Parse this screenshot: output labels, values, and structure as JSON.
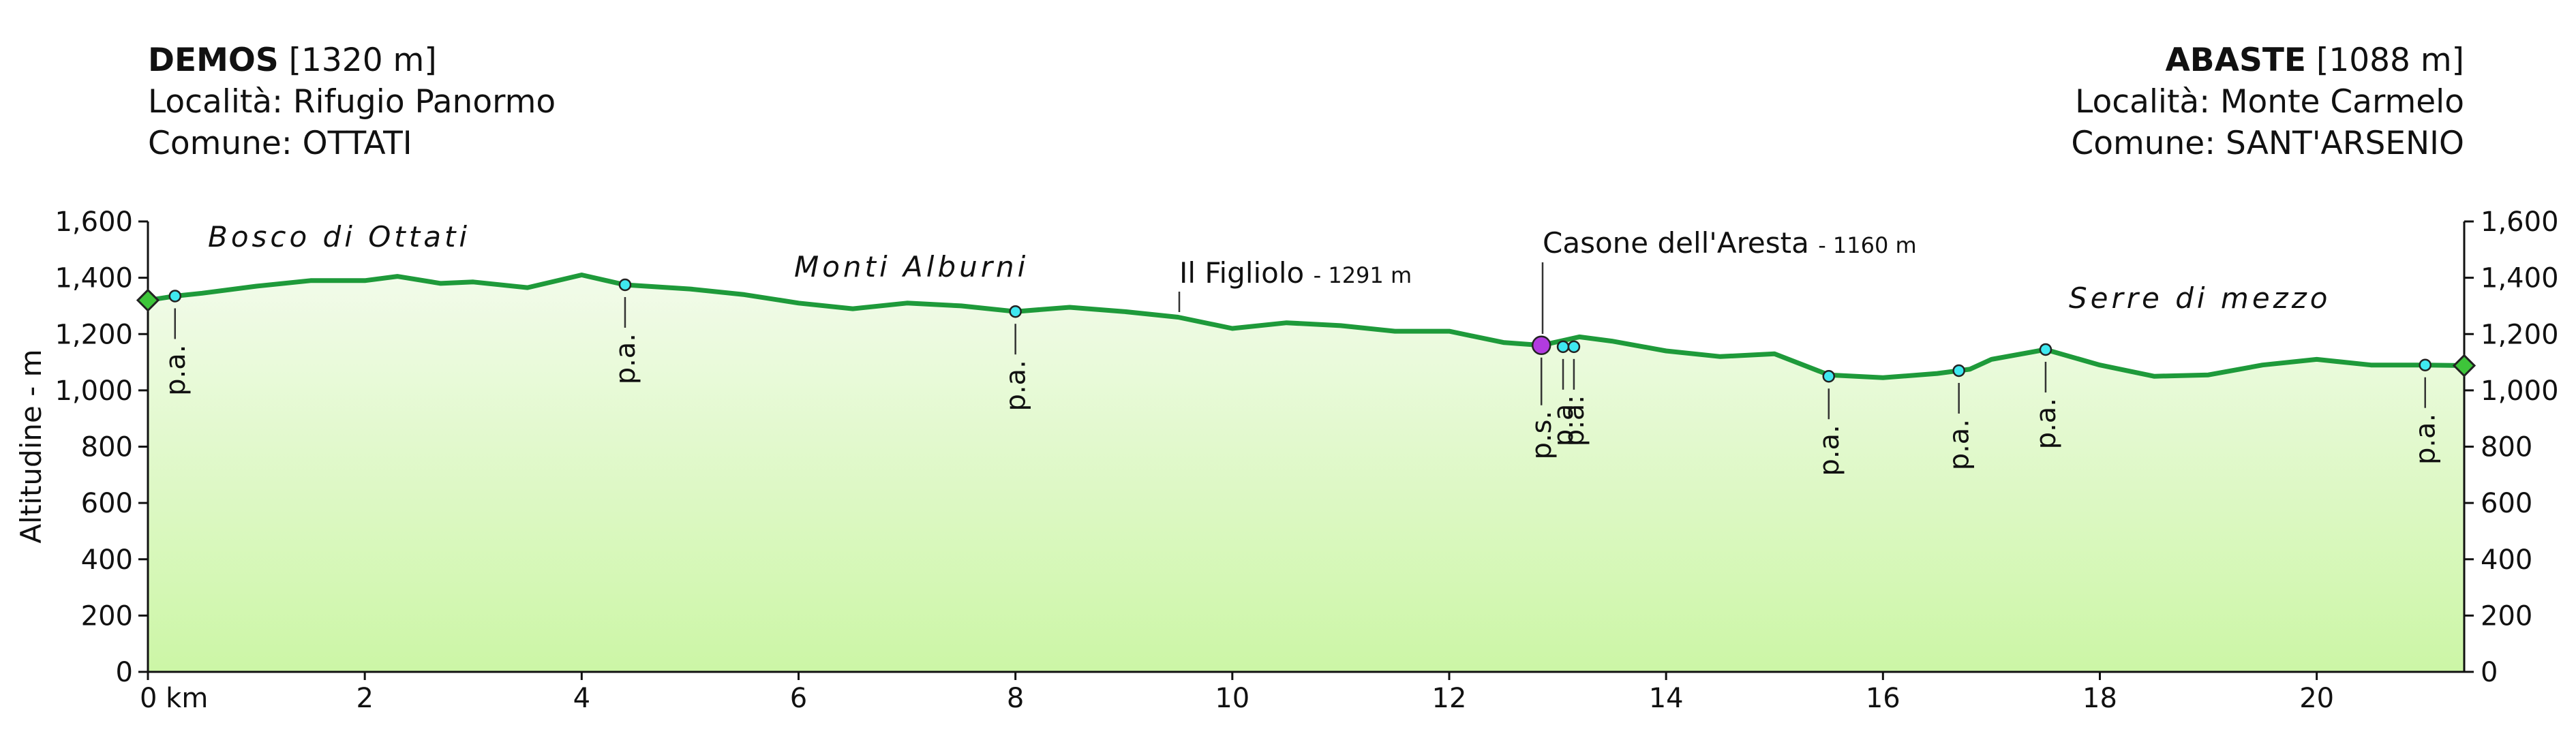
{
  "chart_data": {
    "type": "area",
    "header_left": {
      "name": "DEMOS",
      "altitude": "[1320 m]",
      "locality": "Località: Rifugio Panormo",
      "comune": "Comune: OTTATI"
    },
    "header_right": {
      "name": "ABASTE",
      "altitude": "[1088 m]",
      "locality": "Località: Monte Carmelo",
      "comune": "Comune: SANT'ARSENIO"
    },
    "y_label": "Altitudine - m",
    "x": [
      0,
      0.25,
      0.5,
      1.0,
      1.5,
      2.0,
      2.3,
      2.7,
      3.0,
      3.5,
      4.0,
      4.4,
      5.0,
      5.5,
      6.0,
      6.5,
      7.0,
      7.5,
      8.0,
      8.5,
      9.0,
      9.5,
      10.0,
      10.5,
      11.0,
      11.5,
      12.0,
      12.5,
      12.85,
      13.2,
      13.5,
      14.0,
      14.5,
      15.0,
      15.5,
      16.0,
      16.5,
      16.8,
      17.0,
      17.5,
      18.0,
      18.5,
      19.0,
      19.5,
      20.0,
      20.5,
      21.0,
      21.36
    ],
    "values": [
      1320,
      1335,
      1345,
      1370,
      1390,
      1390,
      1405,
      1380,
      1385,
      1365,
      1410,
      1375,
      1360,
      1340,
      1310,
      1290,
      1310,
      1300,
      1280,
      1295,
      1280,
      1260,
      1220,
      1240,
      1230,
      1210,
      1210,
      1170,
      1160,
      1190,
      1175,
      1140,
      1120,
      1130,
      1055,
      1045,
      1060,
      1075,
      1110,
      1145,
      1090,
      1050,
      1055,
      1090,
      1110,
      1090,
      1090,
      1088
    ],
    "color": "#1e9a3a",
    "fill_top": "#f2fbea",
    "fill_bottom": "#ccf6a6",
    "endpoint_color": "#3ec53a",
    "markers": {
      "x": [
        0.25,
        4.4,
        8.0,
        12.85,
        13.05,
        13.15,
        15.5,
        16.7,
        17.5,
        21.0
      ],
      "values": [
        1335,
        1375,
        1280,
        1160,
        1155,
        1155,
        1050,
        1070,
        1145,
        1090
      ],
      "labels": [
        "p.a.",
        "p.a.",
        "p.a.",
        "p.s.",
        "p.a.",
        "p.a.",
        "p.a.",
        "p.a.",
        "p.a.",
        "p.a."
      ],
      "colors": [
        "#3fe8f0",
        "#3fe8f0",
        "#3fe8f0",
        "#b23be0",
        "#3fe8f0",
        "#3fe8f0",
        "#3fe8f0",
        "#3fe8f0",
        "#3fe8f0",
        "#3fe8f0"
      ]
    },
    "areas": [
      "Bosco di Ottati",
      "Monti Alburni",
      "Serre di mezzo"
    ],
    "places": [
      {
        "name": "Il Figliolo",
        "detail": "- 1291 m"
      },
      {
        "name": "Casone dell'Aresta",
        "detail": "- 1160 m"
      }
    ],
    "xlim": [
      0,
      21.36
    ],
    "ylim": [
      0,
      1600
    ],
    "xticks": [
      {
        "value": 0,
        "label": "0 km"
      },
      2,
      4,
      6,
      8,
      10,
      12,
      14,
      16,
      18,
      20
    ],
    "yticks": [
      0,
      200,
      400,
      600,
      800,
      {
        "value": 1000,
        "label": "1,000"
      },
      {
        "value": 1200,
        "label": "1,200"
      },
      {
        "value": 1400,
        "label": "1,400"
      },
      {
        "value": 1600,
        "label": "1,600"
      }
    ]
  }
}
